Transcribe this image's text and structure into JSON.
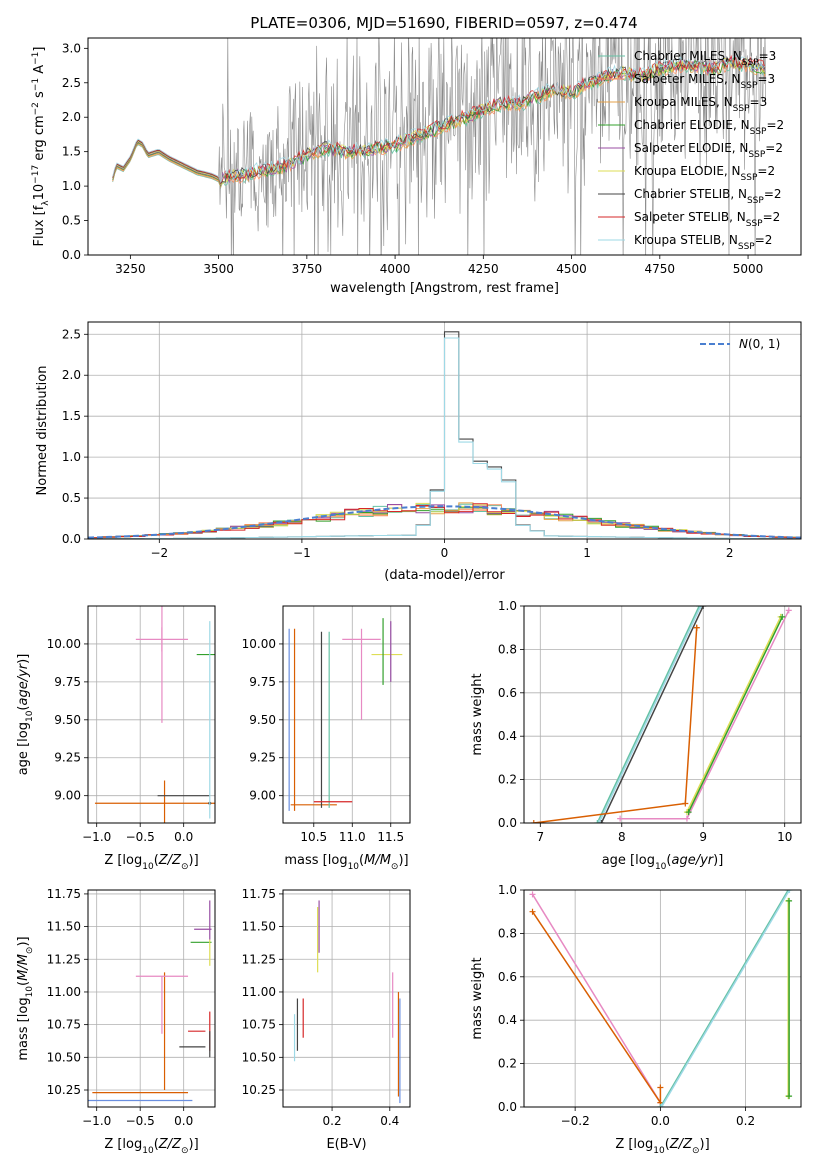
{
  "chart_data": [
    {
      "type": "line",
      "title": "PLATE=0306, MJD=51690, FIBERID=0597, z=0.474",
      "xlabel": "wavelength [Angstrom, rest frame]",
      "ylabel": "Flux [f_λ 10^-17 erg cm^-2 s^-1 A^-1]",
      "xlim": [
        3130,
        5150
      ],
      "ylim": [
        0,
        3.15
      ],
      "xticks": [
        3250,
        3500,
        3750,
        4000,
        4250,
        4500,
        4750,
        5000
      ],
      "yticks": [
        0.0,
        0.5,
        1.0,
        1.5,
        2.0,
        2.5,
        3.0
      ],
      "grid": false,
      "legend_position": "top-right",
      "data_range": [
        3200,
        5050
      ],
      "continuum_x": [
        3200,
        3210,
        3230,
        3250,
        3270,
        3285,
        3300,
        3330,
        3360,
        3400,
        3440,
        3480,
        3500,
        3550,
        3600,
        3650,
        3700,
        3750,
        3800,
        3850,
        3900,
        3950,
        4000,
        4050,
        4100,
        4150,
        4200,
        4250,
        4300,
        4350,
        4400,
        4450,
        4500,
        4550,
        4600,
        4650,
        4700,
        4750,
        4800,
        4850,
        4900,
        4950,
        5000,
        5050
      ],
      "continuum_y": [
        1.1,
        1.3,
        1.25,
        1.4,
        1.65,
        1.6,
        1.45,
        1.5,
        1.4,
        1.3,
        1.2,
        1.15,
        1.1,
        1.15,
        1.2,
        1.25,
        1.3,
        1.45,
        1.55,
        1.5,
        1.5,
        1.55,
        1.6,
        1.7,
        1.8,
        1.9,
        2.0,
        2.1,
        2.2,
        2.2,
        2.3,
        2.4,
        2.35,
        2.5,
        2.6,
        2.65,
        2.6,
        2.7,
        2.75,
        2.75,
        2.7,
        2.8,
        2.75,
        2.7
      ],
      "series": [
        {
          "name": "Chabrier MILES, N_SSP=3",
          "color": "#66c2a5"
        },
        {
          "name": "Salpeter MILES, N_SSP=3",
          "color": "#fc8d62"
        },
        {
          "name": "Kroupa MILES, N_SSP=3",
          "color": "#e5a24a"
        },
        {
          "name": "Chabrier ELODIE, N_SSP=2",
          "color": "#33a02c"
        },
        {
          "name": "Salpeter ELODIE, N_SSP=2",
          "color": "#984ea3"
        },
        {
          "name": "Kroupa ELODIE, N_SSP=2",
          "color": "#dede55"
        },
        {
          "name": "Chabrier STELIB, N_SSP=2",
          "color": "#444444"
        },
        {
          "name": "Salpeter STELIB, N_SSP=2",
          "color": "#d62728"
        },
        {
          "name": "Kroupa STELIB, N_SSP=2",
          "color": "#9ed9e6"
        }
      ]
    },
    {
      "type": "histogram",
      "xlabel": "(data-model)/error",
      "ylabel": "Normed distribution",
      "xlim": [
        -2.5,
        2.5
      ],
      "ylim": [
        0,
        2.65
      ],
      "xticks": [
        -2,
        -1,
        0,
        1,
        2
      ],
      "yticks": [
        0.0,
        0.5,
        1.0,
        1.5,
        2.0,
        2.5
      ],
      "grid": true,
      "legend_position": "top-right",
      "legend": "N(0,1)",
      "bin_width": 0.1,
      "broad_profile_sigma": 1.0,
      "narrow_peak_bins": [
        {
          "x": -0.2,
          "y": 0.17
        },
        {
          "x": -0.1,
          "y": 0.6
        },
        {
          "x": 0.0,
          "y": 2.53
        },
        {
          "x": 0.1,
          "y": 1.22
        },
        {
          "x": 0.2,
          "y": 0.95
        },
        {
          "x": 0.3,
          "y": 0.88
        },
        {
          "x": 0.4,
          "y": 0.72
        },
        {
          "x": 0.5,
          "y": 0.17
        },
        {
          "x": 0.6,
          "y": 0.1
        }
      ]
    },
    {
      "type": "scatter",
      "xlabel": "Z [log10(Z/Z⊙)]",
      "ylabel": "age [log10(age/yr)]",
      "xlim": [
        -1.1,
        0.36
      ],
      "ylim": [
        8.82,
        10.25
      ],
      "xticks": [
        -1.0,
        -0.5,
        0.0
      ],
      "yticks": [
        9.0,
        9.25,
        9.5,
        9.75,
        10.0
      ],
      "grid": true,
      "errorbars": [
        {
          "x": -0.25,
          "y": 10.03,
          "xerr": 0.3,
          "yerr": 0.08,
          "color": "#e78ac3"
        },
        {
          "x": -0.25,
          "y": 10.03,
          "xerr": 0.0,
          "yerr": 0.55,
          "color": "#e78ac3"
        },
        {
          "x": -0.22,
          "y": 8.95,
          "xerr": 0.0,
          "yerr": 0.15,
          "color": "#d95f02"
        },
        {
          "x": -0.22,
          "y": 8.95,
          "xerr": 0.8,
          "yerr": 0.0,
          "color": "#d95f02"
        },
        {
          "x": 0.3,
          "y": 8.95,
          "xerr": 0.0,
          "yerr": 0.0,
          "color": "#444444"
        },
        {
          "x": 0.0,
          "y": 9.0,
          "xerr": 0.3,
          "yerr": 0.0,
          "color": "#444444"
        },
        {
          "x": 0.3,
          "y": 9.93,
          "xerr": 0.15,
          "yerr": 0.0,
          "color": "#33a02c"
        },
        {
          "x": 0.3,
          "y": 9.5,
          "xerr": 0.0,
          "yerr": 0.65,
          "color": "#9ed9e6"
        }
      ]
    },
    {
      "type": "scatter",
      "xlabel": "mass [log10(M/M⊙)]",
      "ylabel": "",
      "xlim": [
        10.1,
        11.75
      ],
      "ylim": [
        8.82,
        10.25
      ],
      "xticks": [
        10.5,
        11.0,
        11.5
      ],
      "yticks": [
        9.0,
        9.25,
        9.5,
        9.75,
        10.0
      ],
      "grid": true,
      "errorbars": [
        {
          "x": 10.18,
          "y": 9.5,
          "xerr": 0.0,
          "yerr": 0.6,
          "color": "#6a8fe0"
        },
        {
          "x": 10.25,
          "y": 9.5,
          "xerr": 0.0,
          "yerr": 0.6,
          "color": "#d95f02"
        },
        {
          "x": 10.5,
          "y": 8.94,
          "xerr": 0.3,
          "yerr": 0.0,
          "color": "#d95f02"
        },
        {
          "x": 10.6,
          "y": 9.5,
          "xerr": 0.0,
          "yerr": 0.58,
          "color": "#444444"
        },
        {
          "x": 10.7,
          "y": 9.5,
          "xerr": 0.0,
          "yerr": 0.58,
          "color": "#66c2a5"
        },
        {
          "x": 10.75,
          "y": 8.96,
          "xerr": 0.25,
          "yerr": 0.0,
          "color": "#d62728"
        },
        {
          "x": 11.12,
          "y": 10.03,
          "xerr": 0.25,
          "yerr": 0.0,
          "color": "#e78ac3"
        },
        {
          "x": 11.12,
          "y": 9.8,
          "xerr": 0.0,
          "yerr": 0.3,
          "color": "#e78ac3"
        },
        {
          "x": 11.45,
          "y": 9.93,
          "xerr": 0.2,
          "yerr": 0.0,
          "color": "#dede55"
        },
        {
          "x": 11.4,
          "y": 9.95,
          "xerr": 0.0,
          "yerr": 0.22,
          "color": "#33a02c"
        },
        {
          "x": 11.5,
          "y": 9.95,
          "xerr": 0.0,
          "yerr": 0.2,
          "color": "#984ea3"
        }
      ]
    },
    {
      "type": "line",
      "xlabel": "age [log10(age/yr)]",
      "ylabel": "mass weight",
      "xlim": [
        6.8,
        10.2
      ],
      "ylim": [
        0,
        1.0
      ],
      "xticks": [
        7,
        8,
        9,
        10
      ],
      "yticks": [
        0.0,
        0.2,
        0.4,
        0.6,
        0.8,
        1.0
      ],
      "grid": true,
      "series": [
        {
          "name": "",
          "color": "#66c2a5",
          "x": [
            7.7,
            8.95
          ],
          "y": [
            0.0,
            1.0
          ]
        },
        {
          "name": "",
          "color": "#9ed9e6",
          "x": [
            7.72,
            8.97
          ],
          "y": [
            0.0,
            1.0
          ]
        },
        {
          "name": "",
          "color": "#444444",
          "x": [
            7.75,
            9.0
          ],
          "y": [
            0.0,
            1.0
          ]
        },
        {
          "name": "",
          "color": "#d95f02",
          "x": [
            6.92,
            8.78,
            8.92,
            8.92
          ],
          "y": [
            0.0,
            0.09,
            0.9,
            0.9
          ]
        },
        {
          "name": "",
          "color": "#e78ac3",
          "x": [
            7.98,
            8.8,
            10.05
          ],
          "y": [
            0.02,
            0.02,
            0.98
          ]
        },
        {
          "name": "",
          "color": "#dede55",
          "x": [
            8.8,
            9.95
          ],
          "y": [
            0.05,
            0.95
          ]
        },
        {
          "name": "",
          "color": "#33a02c",
          "x": [
            8.82,
            9.97
          ],
          "y": [
            0.05,
            0.95
          ]
        }
      ]
    },
    {
      "type": "scatter",
      "xlabel": "Z [log10(Z/Z⊙)]",
      "ylabel": "mass [log10(M/M⊙)]",
      "xlim": [
        -1.1,
        0.36
      ],
      "ylim": [
        10.12,
        11.78
      ],
      "xticks": [
        -1.0,
        -0.5,
        0.0
      ],
      "yticks": [
        10.25,
        10.5,
        10.75,
        11.0,
        11.25,
        11.5,
        11.75
      ],
      "grid": true,
      "errorbars": [
        {
          "x": -0.5,
          "y": 10.17,
          "xerr": 0.6,
          "yerr": 0.0,
          "color": "#6a8fe0"
        },
        {
          "x": -0.5,
          "y": 10.23,
          "xerr": 0.55,
          "yerr": 0.0,
          "color": "#d95f02"
        },
        {
          "x": -0.22,
          "y": 10.7,
          "xerr": 0.0,
          "yerr": 0.45,
          "color": "#d95f02"
        },
        {
          "x": -0.25,
          "y": 11.12,
          "xerr": 0.3,
          "yerr": 0.0,
          "color": "#e78ac3"
        },
        {
          "x": -0.25,
          "y": 10.9,
          "xerr": 0.0,
          "yerr": 0.22,
          "color": "#e78ac3"
        },
        {
          "x": 0.1,
          "y": 10.58,
          "xerr": 0.15,
          "yerr": 0.0,
          "color": "#444444"
        },
        {
          "x": 0.15,
          "y": 10.7,
          "xerr": 0.1,
          "yerr": 0.0,
          "color": "#d62728"
        },
        {
          "x": 0.3,
          "y": 10.7,
          "xerr": 0.0,
          "yerr": 0.15,
          "color": "#d62728"
        },
        {
          "x": 0.3,
          "y": 10.6,
          "xerr": 0.0,
          "yerr": 0.1,
          "color": "#444444"
        },
        {
          "x": 0.22,
          "y": 11.48,
          "xerr": 0.1,
          "yerr": 0.0,
          "color": "#984ea3"
        },
        {
          "x": 0.3,
          "y": 11.55,
          "xerr": 0.0,
          "yerr": 0.15,
          "color": "#984ea3"
        },
        {
          "x": 0.2,
          "y": 11.38,
          "xerr": 0.12,
          "yerr": 0.0,
          "color": "#33a02c"
        },
        {
          "x": 0.3,
          "y": 11.3,
          "xerr": 0.0,
          "yerr": 0.1,
          "color": "#dede55"
        }
      ]
    },
    {
      "type": "scatter",
      "xlabel": "E(B-V)",
      "ylabel": "",
      "xlim": [
        0.03,
        0.47
      ],
      "ylim": [
        10.12,
        11.78
      ],
      "xticks": [
        0.2,
        0.4
      ],
      "yticks": [
        10.25,
        10.5,
        10.75,
        11.0,
        11.25,
        11.5,
        11.75
      ],
      "grid": true,
      "errorbars": [
        {
          "x": 0.07,
          "y": 10.65,
          "xerr": 0.0,
          "yerr": 0.18,
          "color": "#9ed9e6"
        },
        {
          "x": 0.08,
          "y": 10.75,
          "xerr": 0.0,
          "yerr": 0.2,
          "color": "#444444"
        },
        {
          "x": 0.1,
          "y": 10.8,
          "xerr": 0.0,
          "yerr": 0.15,
          "color": "#d62728"
        },
        {
          "x": 0.15,
          "y": 11.4,
          "xerr": 0.0,
          "yerr": 0.25,
          "color": "#dede55"
        },
        {
          "x": 0.155,
          "y": 11.5,
          "xerr": 0.0,
          "yerr": 0.2,
          "color": "#984ea3"
        },
        {
          "x": 0.41,
          "y": 10.9,
          "xerr": 0.0,
          "yerr": 0.25,
          "color": "#e78ac3"
        },
        {
          "x": 0.43,
          "y": 10.6,
          "xerr": 0.0,
          "yerr": 0.4,
          "color": "#d95f02"
        },
        {
          "x": 0.435,
          "y": 10.55,
          "xerr": 0.0,
          "yerr": 0.4,
          "color": "#6a8fe0"
        }
      ]
    },
    {
      "type": "line",
      "xlabel": "Z [log10(Z/Z⊙)]",
      "ylabel": "mass weight",
      "xlim": [
        -0.32,
        0.33
      ],
      "ylim": [
        0,
        1.0
      ],
      "xticks": [
        -0.2,
        0.0,
        0.2
      ],
      "yticks": [
        0.0,
        0.2,
        0.4,
        0.6,
        0.8,
        1.0
      ],
      "grid": true,
      "series": [
        {
          "name": "",
          "color": "#e78ac3",
          "x": [
            -0.3,
            0.0
          ],
          "y": [
            0.98,
            0.02
          ]
        },
        {
          "name": "",
          "color": "#d95f02",
          "x": [
            -0.3,
            0.0,
            0.0
          ],
          "y": [
            0.9,
            0.02,
            0.09
          ]
        },
        {
          "name": "",
          "color": "#66c2a5",
          "x": [
            0.0,
            0.3
          ],
          "y": [
            0.0,
            1.0
          ]
        },
        {
          "name": "",
          "color": "#9ed9e6",
          "x": [
            0.003,
            0.303
          ],
          "y": [
            0.0,
            1.0
          ]
        },
        {
          "name": "",
          "color": "#dede55",
          "x": [
            0.3,
            0.3
          ],
          "y": [
            0.05,
            0.95
          ]
        },
        {
          "name": "",
          "color": "#33a02c",
          "x": [
            0.302,
            0.302
          ],
          "y": [
            0.05,
            0.95
          ]
        }
      ]
    }
  ]
}
